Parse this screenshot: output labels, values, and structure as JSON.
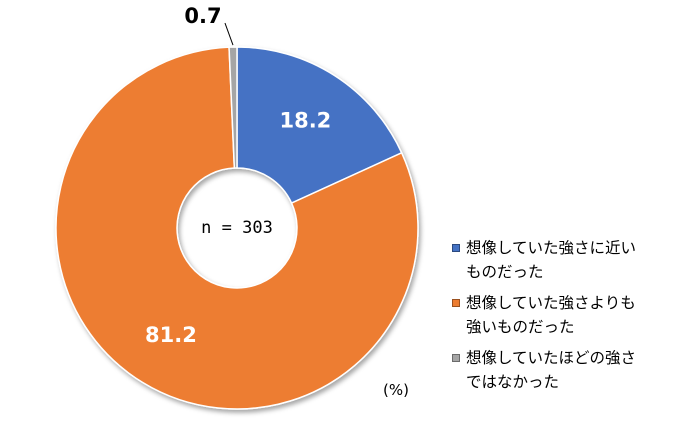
{
  "chart_data": {
    "type": "pie",
    "variant": "donut",
    "categories": [
      "想像していた強さに近いものだった",
      "想像していた強さよりも強いものだった",
      "想像していたほどの強さではなかった"
    ],
    "values": [
      18.2,
      81.2,
      0.7
    ],
    "value_labels": [
      "18.2",
      "81.2",
      "0.7"
    ],
    "colors": [
      "#4472C4",
      "#ED7D31",
      "#A5A5A5"
    ],
    "center_text": "n = 303",
    "unit": "(%)",
    "legend_position": "right",
    "legend": [
      {
        "line1": "想像していた強さに近い",
        "line2": "ものだった"
      },
      {
        "line1": "想像していた強さよりも",
        "line2": "強いものだった"
      },
      {
        "line1": "想像していたほどの強さ",
        "line2": "ではなかった"
      }
    ]
  }
}
